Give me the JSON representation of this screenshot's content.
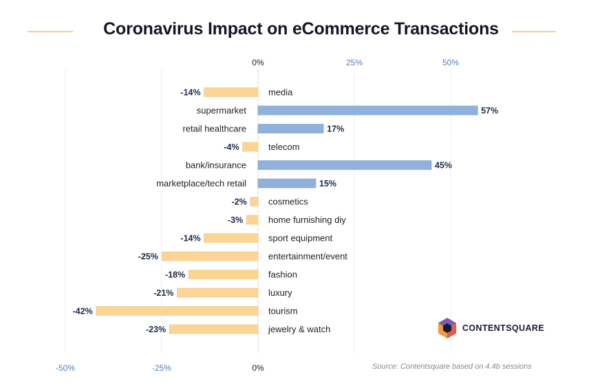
{
  "title": "Coronavirus Impact on eCommerce Transactions",
  "source": "Source: Contentsquare based on 4.4b sessions",
  "logo_text": "CONTENTSQUARE",
  "colors": {
    "positive": "#8fb1db",
    "negative": "#fcd596",
    "axis_text_blue": "#4f7fbf",
    "title_rule": "#f6cf88"
  },
  "chart_data": {
    "type": "bar",
    "orientation": "horizontal",
    "title": "Coronavirus Impact on eCommerce Transactions",
    "categories": [
      "media",
      "supermarket",
      "retail healthcare",
      "telecom",
      "bank/insurance",
      "marketplace/tech retail",
      "cosmetics",
      "home furnishing diy",
      "sport equipment",
      "entertainment/event",
      "fashion",
      "luxury",
      "tourism",
      "jewelry & watch"
    ],
    "values": [
      -14,
      57,
      17,
      -4,
      45,
      15,
      -2,
      -3,
      -14,
      -25,
      -18,
      -21,
      -42,
      -23
    ],
    "value_labels": [
      "-14%",
      "57%",
      "17%",
      "-4%",
      "45%",
      "15%",
      "-2%",
      "-3%",
      "-14%",
      "-25%",
      "-18%",
      "-21%",
      "-42%",
      "-23%"
    ],
    "top_ticks": {
      "values": [
        0,
        25,
        50
      ],
      "labels": [
        "0%",
        "25%",
        "50%"
      ]
    },
    "bottom_ticks": {
      "values": [
        -50,
        -25,
        0
      ],
      "labels": [
        "-50%",
        "-25%",
        "0%"
      ]
    },
    "xlim": [
      -50,
      57
    ],
    "grid": true
  }
}
